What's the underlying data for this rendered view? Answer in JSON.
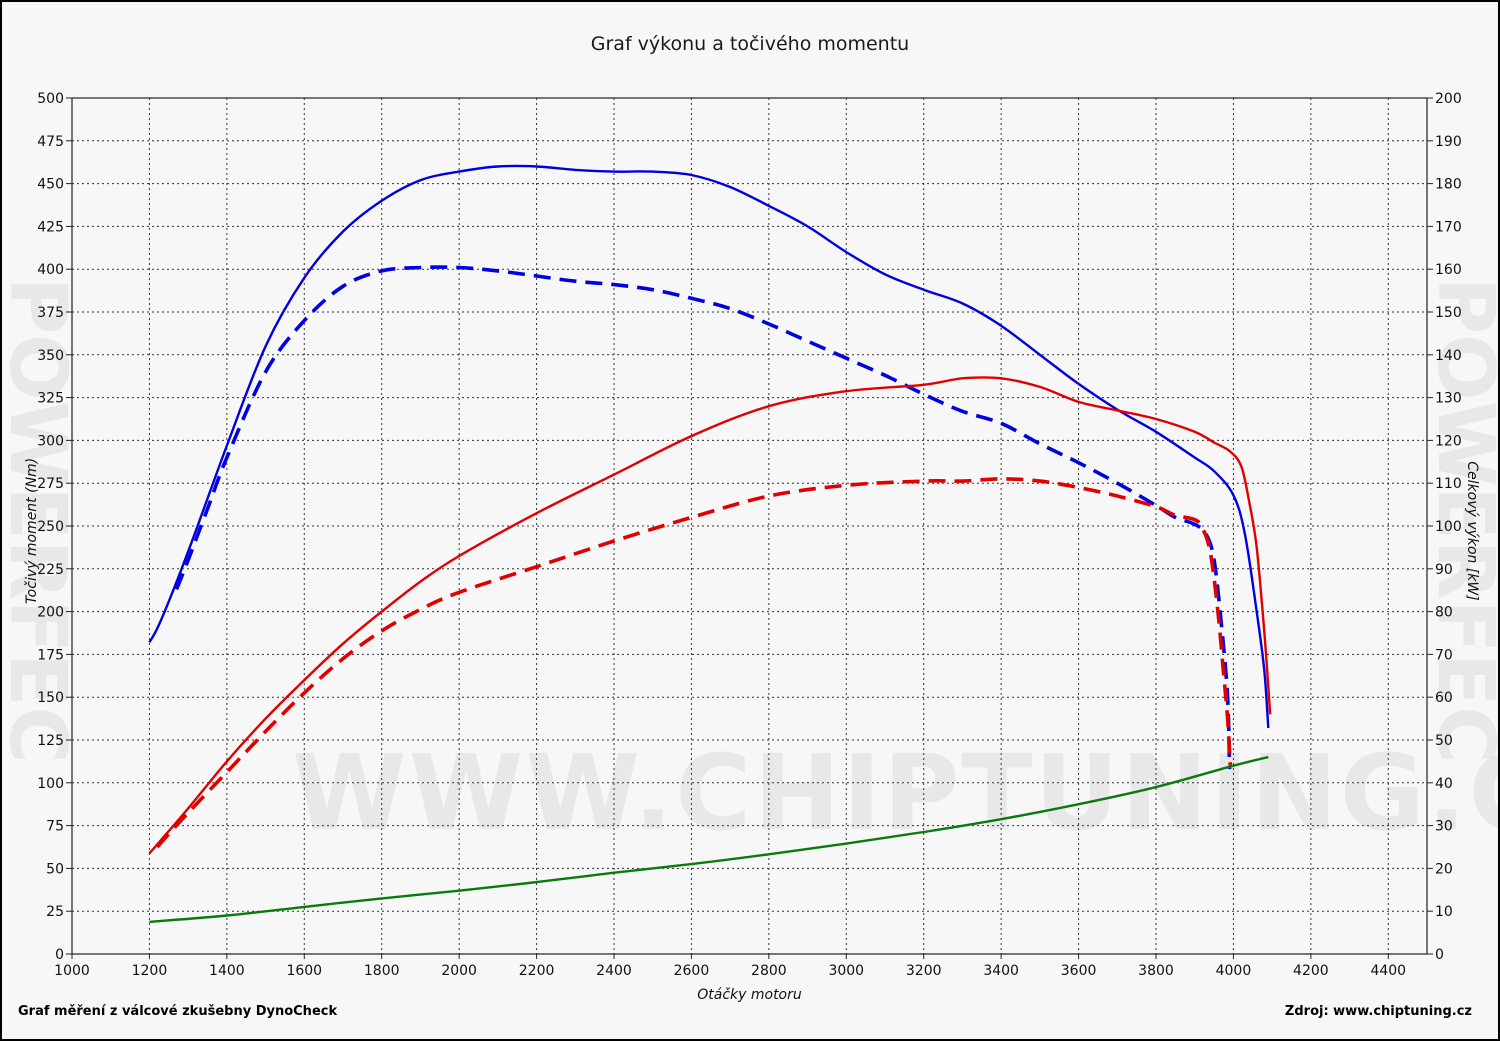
{
  "title": "Graf výkonu a točivého momentu",
  "footer": {
    "left": "Graf měření z válcové zkušebny DynoCheck",
    "right": "Zdroj: www.chiptuning.cz"
  },
  "watermark": "WWW.CHIPTUNING.CZ",
  "brand_vertical": "POWERFEC",
  "colors": {
    "tuned": "#e00000",
    "stock_torque": "#0000e0",
    "resistance": "#0a7a0a",
    "grid": "#333333"
  },
  "chart_data": {
    "type": "line",
    "title": "Graf výkonu a točivého momentu",
    "xlabel": "Otáčky motoru",
    "ylabel": "Točivý moment (Nm)",
    "y2label": "Celkový výkon [kW]",
    "xlim": [
      1000,
      4500
    ],
    "ylim": [
      0,
      500
    ],
    "y2lim": [
      0,
      200
    ],
    "x_ticks": [
      1000,
      1200,
      1400,
      1600,
      1800,
      2000,
      2200,
      2400,
      2600,
      2800,
      3000,
      3200,
      3400,
      3600,
      3800,
      4000,
      4200,
      4400
    ],
    "y_ticks": [
      0,
      25,
      50,
      75,
      100,
      125,
      150,
      175,
      200,
      225,
      250,
      275,
      300,
      325,
      350,
      375,
      400,
      425,
      450,
      475,
      500
    ],
    "y2_ticks": [
      0,
      10,
      20,
      30,
      40,
      50,
      60,
      70,
      80,
      90,
      100,
      110,
      120,
      130,
      140,
      150,
      160,
      170,
      180,
      190,
      200
    ],
    "grid": true,
    "series": [
      {
        "axis": "left",
        "color": "#0000e0",
        "style": "solid",
        "x": [
          1200,
          1230,
          1300,
          1400,
          1500,
          1600,
          1700,
          1800,
          1900,
          2000,
          2100,
          2200,
          2300,
          2400,
          2500,
          2600,
          2700,
          2800,
          2900,
          3000,
          3100,
          3200,
          3300,
          3400,
          3500,
          3600,
          3700,
          3800,
          3900,
          3950,
          4000,
          4030,
          4060,
          4080,
          4090
        ],
        "y": [
          182,
          195,
          235,
          297,
          355,
          395,
          422,
          440,
          452,
          457,
          460,
          460,
          458,
          457,
          457,
          455,
          448,
          437,
          425,
          410,
          397,
          388,
          380,
          367,
          350,
          333,
          318,
          305,
          290,
          282,
          268,
          245,
          200,
          165,
          132
        ]
      },
      {
        "axis": "left",
        "color": "#0000e0",
        "style": "dashed",
        "x": [
          1270,
          1300,
          1350,
          1400,
          1500,
          1600,
          1700,
          1800,
          1900,
          2000,
          2100,
          2200,
          2300,
          2400,
          2500,
          2600,
          2700,
          2800,
          2900,
          3000,
          3100,
          3200,
          3300,
          3400,
          3500,
          3600,
          3700,
          3800,
          3850,
          3900,
          3930,
          3950,
          3970,
          3985,
          3990
        ],
        "y": [
          213,
          230,
          260,
          290,
          340,
          370,
          390,
          399,
          401,
          401,
          399,
          396,
          393,
          391,
          388,
          383,
          377,
          368,
          358,
          348,
          338,
          327,
          317,
          310,
          298,
          287,
          275,
          262,
          255,
          251,
          245,
          230,
          190,
          150,
          108
        ]
      },
      {
        "axis": "right",
        "color": "#e00000",
        "style": "solid",
        "x": [
          1200,
          1300,
          1400,
          1500,
          1600,
          1700,
          1800,
          1900,
          2000,
          2200,
          2400,
          2600,
          2800,
          3000,
          3200,
          3300,
          3400,
          3500,
          3600,
          3700,
          3800,
          3900,
          3950,
          3990,
          4020,
          4040,
          4060,
          4080,
          4095
        ],
        "y": [
          23.5,
          34,
          45,
          55,
          64,
          72.5,
          80,
          87,
          93,
          103,
          112,
          121,
          128,
          131.5,
          133,
          134.5,
          134.5,
          132.5,
          129,
          127,
          125,
          122,
          119.5,
          117.5,
          114,
          106,
          95,
          75,
          56
        ]
      },
      {
        "axis": "right",
        "color": "#e00000",
        "style": "dashed",
        "x": [
          1220,
          1300,
          1400,
          1500,
          1600,
          1700,
          1800,
          1900,
          2000,
          2200,
          2400,
          2600,
          2800,
          3000,
          3200,
          3300,
          3400,
          3500,
          3600,
          3700,
          3800,
          3850,
          3900,
          3920,
          3940,
          3960,
          3975,
          3985,
          3992
        ],
        "y": [
          25,
          33,
          42.5,
          52,
          61,
          69,
          75.5,
          80.5,
          84.5,
          90.5,
          96.5,
          102,
          107,
          109.5,
          110.5,
          110.5,
          111,
          110.5,
          109,
          107,
          104.5,
          102.5,
          101.5,
          99.5,
          94,
          80,
          65,
          55,
          44
        ]
      },
      {
        "axis": "right",
        "color": "#0a7a0a",
        "style": "solid",
        "x": [
          1200,
          1400,
          1600,
          1800,
          2000,
          2200,
          2400,
          2600,
          2800,
          3000,
          3200,
          3400,
          3600,
          3800,
          4000,
          4090
        ],
        "y": [
          7.5,
          9,
          11,
          13,
          14.8,
          16.8,
          19,
          21,
          23.3,
          25.8,
          28.5,
          31.5,
          35,
          39,
          44,
          46
        ]
      }
    ]
  }
}
